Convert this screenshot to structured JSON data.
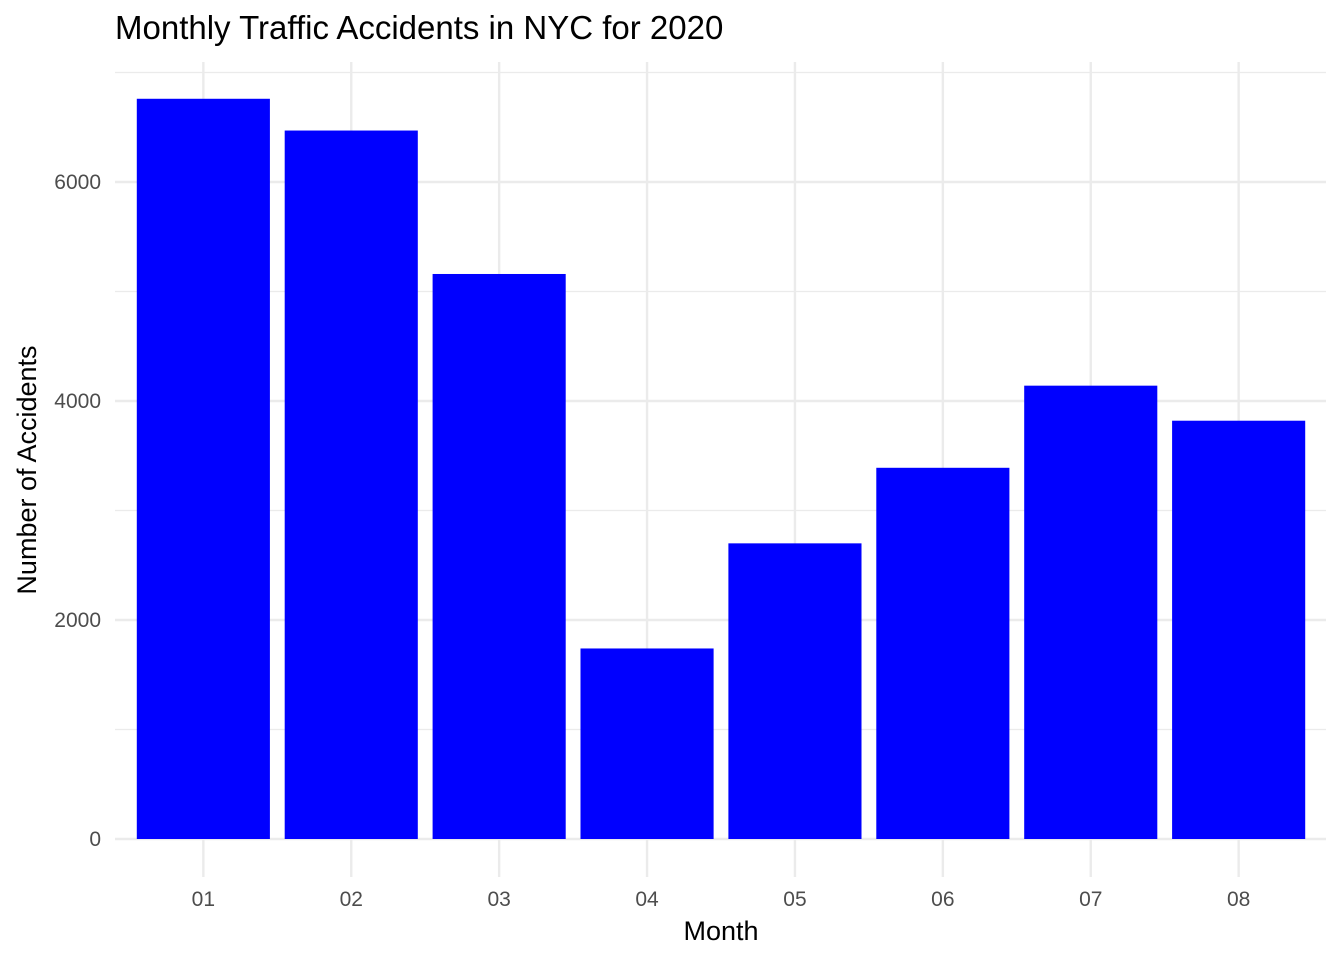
{
  "chart_data": {
    "type": "bar",
    "title": "Monthly Traffic Accidents in NYC for 2020",
    "xlabel": "Month",
    "ylabel": "Number of Accidents",
    "categories": [
      "01",
      "02",
      "03",
      "04",
      "05",
      "06",
      "07",
      "08"
    ],
    "values": [
      6760,
      6470,
      5160,
      1740,
      2700,
      3390,
      4140,
      3820
    ],
    "ylim": [
      0,
      7000
    ],
    "yticks": [
      0,
      2000,
      4000,
      6000
    ],
    "yticks_minor": [
      1000,
      3000,
      5000,
      7000
    ],
    "grid": true,
    "legend": "none",
    "colors": {
      "bar": "#0000ff",
      "grid": "#ebebeb",
      "tick_label": "#4d4d4d",
      "background": "#ffffff"
    }
  }
}
